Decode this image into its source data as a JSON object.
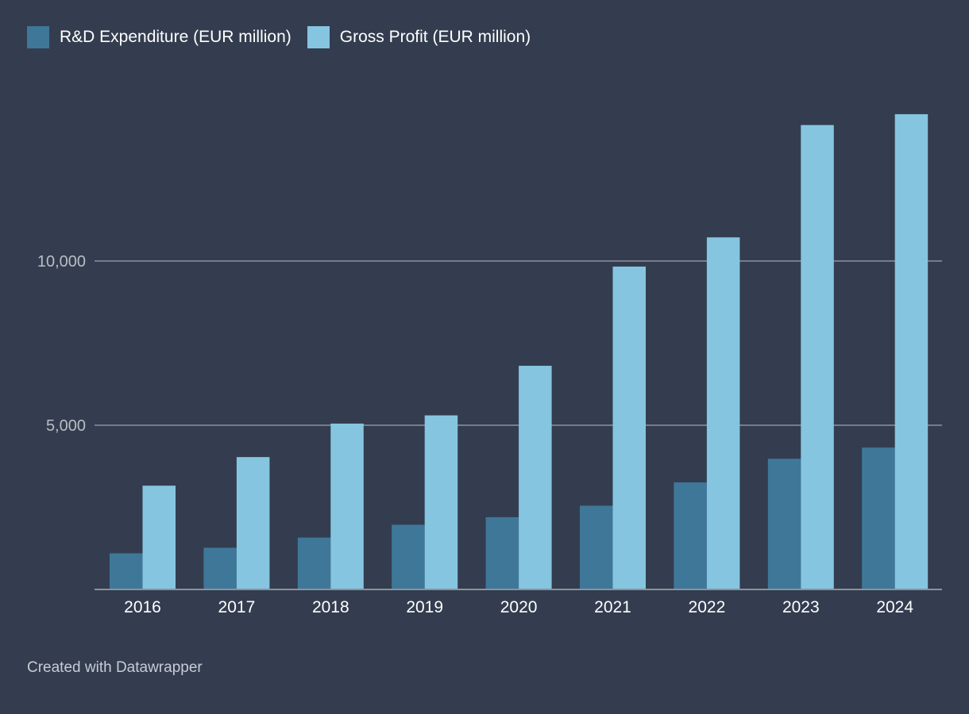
{
  "chart_data": {
    "type": "bar",
    "title": "",
    "xlabel": "",
    "ylabel": "",
    "ylim": [
      0,
      14500
    ],
    "grid": true,
    "legend_position": "top-left",
    "categories": [
      "2016",
      "2017",
      "2018",
      "2019",
      "2020",
      "2021",
      "2022",
      "2023",
      "2024"
    ],
    "series": [
      {
        "name": "R&D Expenditure (EUR million)",
        "color": "#3f7799",
        "values": [
          1100,
          1270,
          1580,
          1970,
          2200,
          2550,
          3260,
          3980,
          4320
        ]
      },
      {
        "name": "Gross Profit (EUR million)",
        "color": "#86c5e0",
        "values": [
          3160,
          4030,
          5050,
          5300,
          6810,
          9830,
          10720,
          14140,
          14470
        ]
      }
    ],
    "y_ticks": [
      {
        "value": 5000,
        "label": "5,000"
      },
      {
        "value": 10000,
        "label": "10,000"
      }
    ]
  },
  "footer": {
    "credit": "Created with Datawrapper"
  },
  "colors": {
    "background": "#333d4f",
    "gridline": "#8c929c",
    "axis_text": "#b9bec6",
    "tick_text": "#ffffff"
  }
}
